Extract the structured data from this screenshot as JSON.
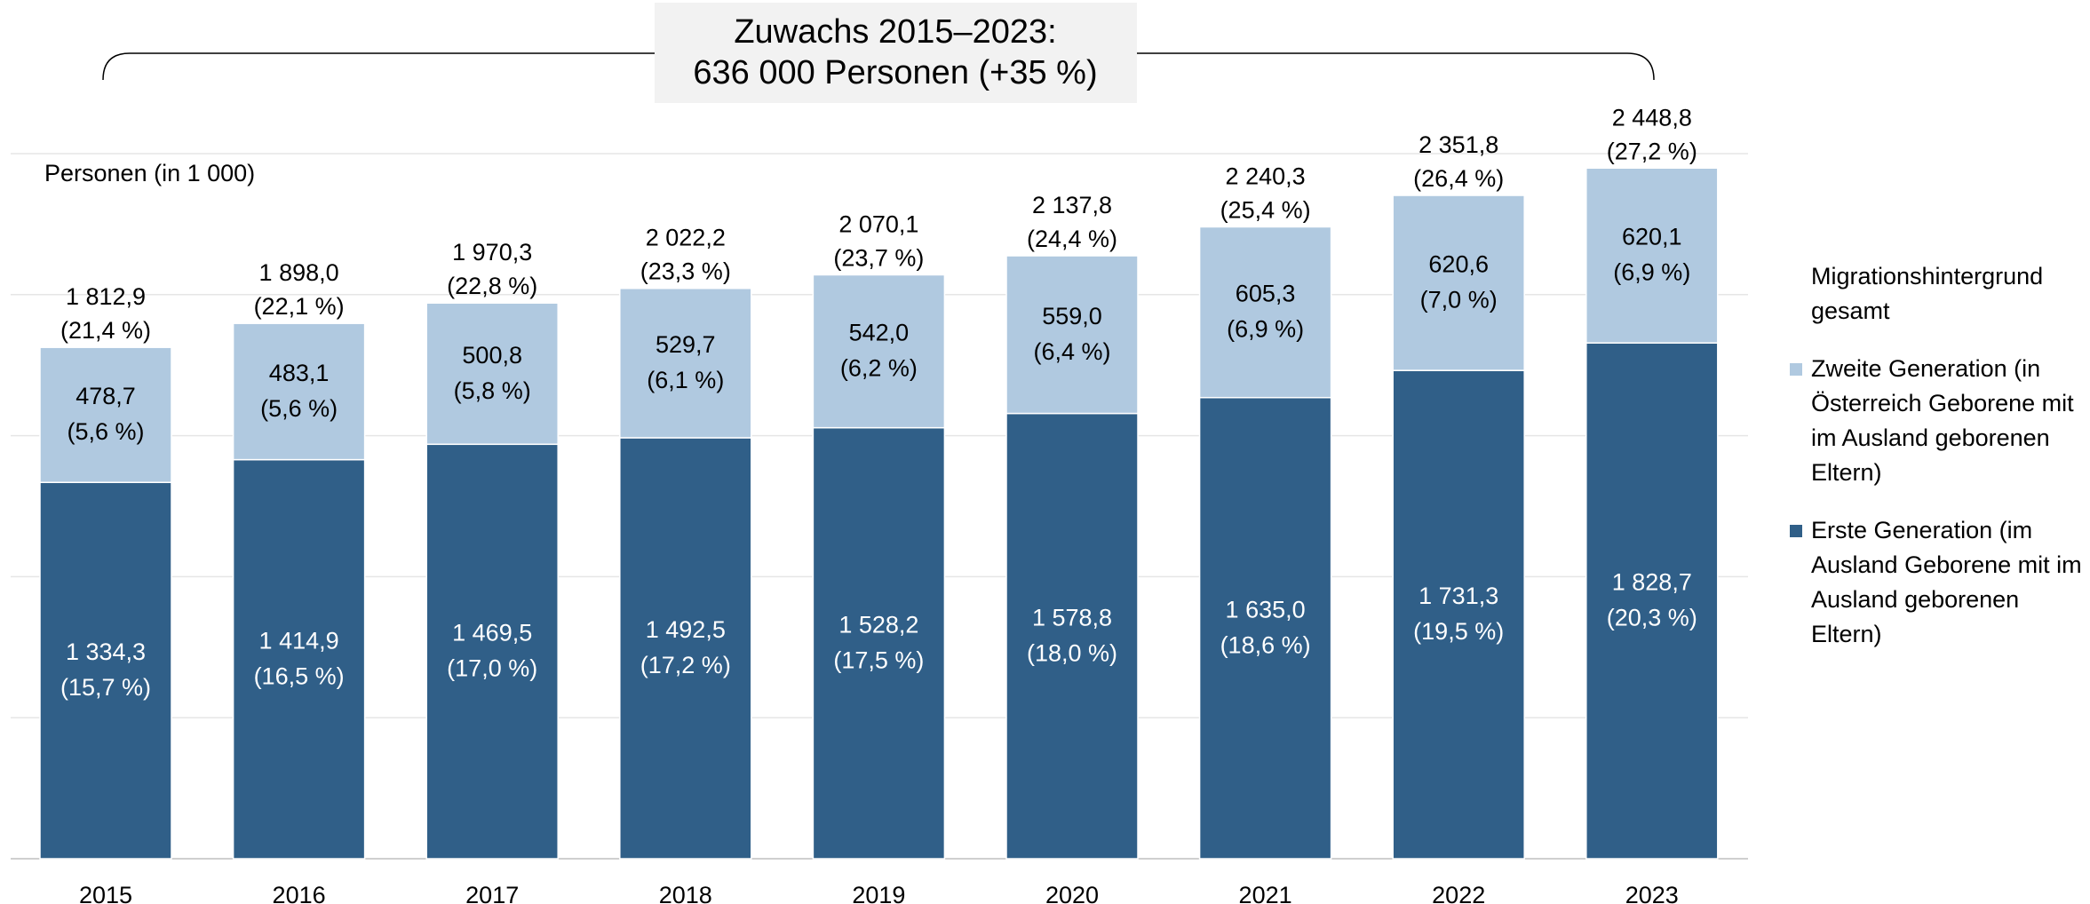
{
  "chart_data": {
    "type": "bar",
    "stacked": true,
    "title": "Zuwachs 2015–2023:",
    "subtitle": "636 000 Personen (+35 %)",
    "y_label": "Personen (in 1 000)",
    "legend_title": "Migrationshintergrund gesamt",
    "categories": [
      "2015",
      "2016",
      "2017",
      "2018",
      "2019",
      "2020",
      "2021",
      "2022",
      "2023"
    ],
    "series": [
      {
        "name": "Erste Generation (im Ausland Geborene mit im Ausland geborenen Eltern)",
        "color": "#305f88",
        "label_color": "#ffffff",
        "values": [
          1334.3,
          1414.9,
          1469.5,
          1492.5,
          1528.2,
          1578.8,
          1635.0,
          1731.3,
          1828.7
        ],
        "value_labels": [
          "1 334,3",
          "1 414,9",
          "1 469,5",
          "1 492,5",
          "1 528,2",
          "1 578,8",
          "1 635,0",
          "1 731,3",
          "1 828,7"
        ],
        "share_labels": [
          "(15,7 %)",
          "(16,5 %)",
          "(17,0 %)",
          "(17,2 %)",
          "(17,5 %)",
          "(18,0 %)",
          "(18,6 %)",
          "(19,5 %)",
          "(20,3 %)"
        ]
      },
      {
        "name": "Zweite Generation (in Österreich Geborene mit im Ausland geborenen Eltern)",
        "color": "#b0c9e0",
        "label_color": "#000000",
        "values": [
          478.7,
          483.1,
          500.8,
          529.7,
          542.0,
          559.0,
          605.3,
          620.6,
          620.1
        ],
        "value_labels": [
          "478,7",
          "483,1",
          "500,8",
          "529,7",
          "542,0",
          "559,0",
          "605,3",
          "620,6",
          "620,1"
        ],
        "share_labels": [
          "(5,6 %)",
          "(5,6 %)",
          "(5,8 %)",
          "(6,1 %)",
          "(6,2 %)",
          "(6,4 %)",
          "(6,9 %)",
          "(7,0 %)",
          "(6,9 %)"
        ]
      }
    ],
    "total_labels": [
      "1 812,9",
      "1 898,0",
      "1 970,3",
      "2 022,2",
      "2 070,1",
      "2 137,8",
      "2 240,3",
      "2 351,8",
      "2 448,8"
    ],
    "total_share_labels": [
      "(21,4 %)",
      "(22,1 %)",
      "(22,8 %)",
      "(23,3 %)",
      "(23,7 %)",
      "(24,4 %)",
      "(25,4 %)",
      "(26,4 %)",
      "(27,2 %)"
    ],
    "ylim": [
      0,
      2500
    ],
    "yticks": [
      0,
      500,
      1000,
      1500,
      2000,
      2500
    ],
    "grid": true
  }
}
